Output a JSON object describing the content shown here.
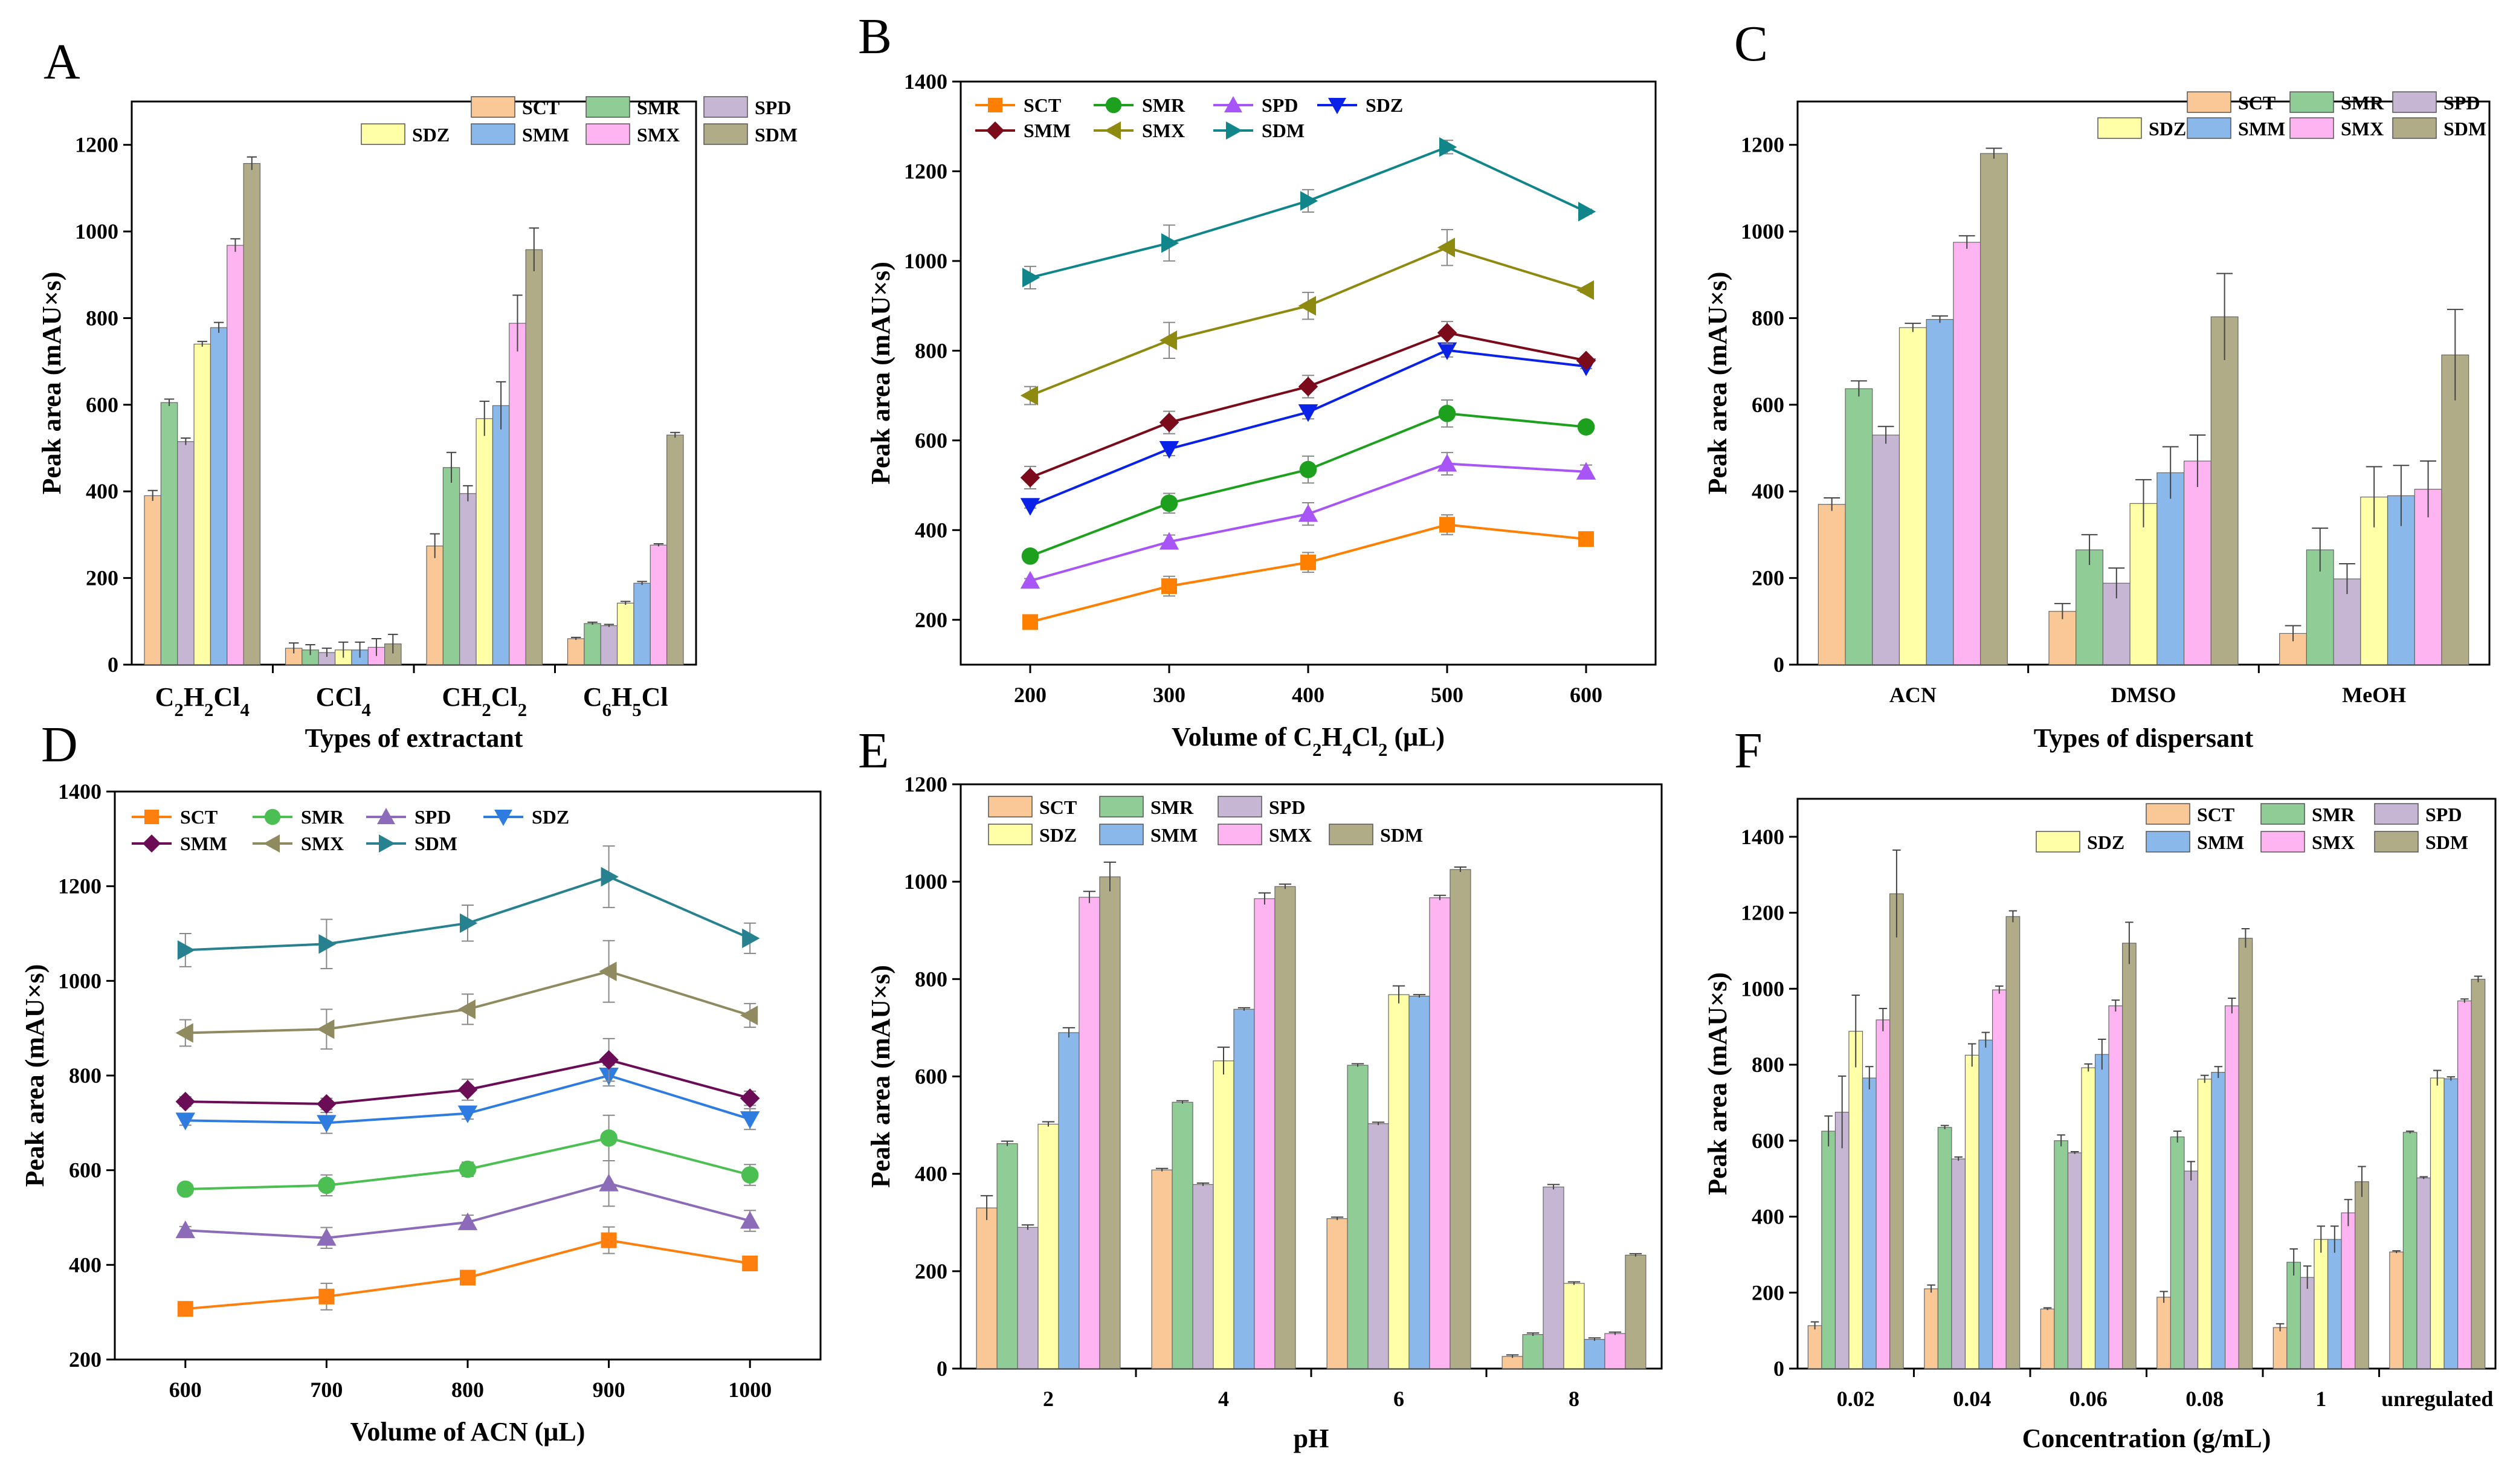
{
  "colors": {
    "SCT": "#F9C896",
    "SMR": "#90CC96",
    "SPD": "#C6B6D4",
    "SDZ": "#FFFFA8",
    "SMM": "#8AB8EA",
    "SMX": "#FFB4F2",
    "SDM": "#B0AC88"
  },
  "line_colors": {
    "B": {
      "SCT": "#FF7F00",
      "SMR": "#1DA01D",
      "SPD": "#A855F7",
      "SDZ": "#0A21E8",
      "SMM": "#7B0A1A",
      "SMX": "#8E8A10",
      "SDM": "#10858A"
    },
    "D": {
      "SCT": "#FF7F0E",
      "SMR": "#4CBF52",
      "SPD": "#8C6BB8",
      "SDZ": "#2F7CE0",
      "SMM": "#6A0D56",
      "SMX": "#8F8A60",
      "SDM": "#27818E"
    }
  },
  "chart_data": [
    {
      "panel": "A",
      "type": "bar",
      "categories": [
        "C2H2Cl4",
        "CCl4",
        "CH2Cl2",
        "C6H5Cl"
      ],
      "xlabel": "Types of extractant",
      "ylabel": "Peak area (mAU×s)",
      "ylim": [
        0,
        1300
      ],
      "yticks": [
        0,
        200,
        400,
        600,
        800,
        1000,
        1200
      ],
      "legend_order": [
        "SCT",
        "SMR",
        "SPD",
        "SDZ",
        "SMM",
        "SMX",
        "SDM"
      ],
      "series": [
        {
          "name": "SCT",
          "values": [
            390,
            38,
            274,
            60
          ],
          "errors": [
            12,
            12,
            28,
            3
          ]
        },
        {
          "name": "SMR",
          "values": [
            605,
            34,
            455,
            95
          ],
          "errors": [
            8,
            12,
            35,
            3
          ]
        },
        {
          "name": "SPD",
          "values": [
            515,
            28,
            395,
            90
          ],
          "errors": [
            8,
            10,
            18,
            3
          ]
        },
        {
          "name": "SDZ",
          "values": [
            740,
            34,
            568,
            142
          ],
          "errors": [
            6,
            18,
            40,
            4
          ]
        },
        {
          "name": "SMM",
          "values": [
            778,
            34,
            598,
            188
          ],
          "errors": [
            12,
            18,
            55,
            4
          ]
        },
        {
          "name": "SMX",
          "values": [
            968,
            40,
            788,
            276
          ],
          "errors": [
            15,
            20,
            65,
            3
          ]
        },
        {
          "name": "SDM",
          "values": [
            1157,
            48,
            958,
            530
          ],
          "errors": [
            15,
            22,
            50,
            6
          ]
        }
      ]
    },
    {
      "panel": "B",
      "type": "line",
      "x": [
        200,
        300,
        400,
        500,
        600
      ],
      "xlabel": "Volume of C2H4Cl2 (μL)",
      "ylabel": "Peak area (mAU×s)",
      "xlim": [
        150,
        650
      ],
      "ylim": [
        100,
        1400
      ],
      "yticks": [
        200,
        400,
        600,
        800,
        1000,
        1200,
        1400
      ],
      "legend_order": [
        "SCT",
        "SMR",
        "SPD",
        "SDZ",
        "SMM",
        "SMX",
        "SDM"
      ],
      "series": [
        {
          "name": "SCT",
          "marker": "square",
          "values": [
            195,
            275,
            328,
            412,
            380
          ],
          "errors": [
            5,
            22,
            22,
            22,
            5
          ]
        },
        {
          "name": "SMR",
          "marker": "circle",
          "values": [
            342,
            460,
            535,
            660,
            630
          ],
          "errors": [
            5,
            22,
            30,
            30,
            5
          ]
        },
        {
          "name": "SPD",
          "marker": "triangle-up",
          "values": [
            287,
            374,
            436,
            548,
            530
          ],
          "errors": [
            5,
            15,
            25,
            25,
            15
          ]
        },
        {
          "name": "SDZ",
          "marker": "triangle-down",
          "values": [
            454,
            581,
            663,
            801,
            765
          ],
          "errors": [
            5,
            15,
            15,
            15,
            5
          ]
        },
        {
          "name": "SMM",
          "marker": "diamond",
          "values": [
            517,
            640,
            720,
            840,
            778
          ],
          "errors": [
            25,
            25,
            25,
            25,
            5
          ]
        },
        {
          "name": "SMX",
          "marker": "triangle-left",
          "values": [
            700,
            823,
            900,
            1030,
            935
          ],
          "errors": [
            20,
            40,
            30,
            40,
            5
          ]
        },
        {
          "name": "SDM",
          "marker": "triangle-right",
          "values": [
            963,
            1040,
            1134,
            1254,
            1110
          ],
          "errors": [
            25,
            40,
            25,
            15,
            5
          ]
        }
      ]
    },
    {
      "panel": "C",
      "type": "bar",
      "categories": [
        "ACN",
        "DMSO",
        "MeOH"
      ],
      "xlabel": "Types of dispersant",
      "ylabel": "Peak area (mAU×s)",
      "ylim": [
        0,
        1300
      ],
      "yticks": [
        0,
        200,
        400,
        600,
        800,
        1000,
        1200
      ],
      "legend_order": [
        "SCT",
        "SMR",
        "SPD",
        "SDZ",
        "SMM",
        "SMX",
        "SDM"
      ],
      "series": [
        {
          "name": "SCT",
          "values": [
            370,
            123,
            72
          ],
          "errors": [
            15,
            18,
            18
          ]
        },
        {
          "name": "SMR",
          "values": [
            637,
            265,
            265
          ],
          "errors": [
            18,
            35,
            50
          ]
        },
        {
          "name": "SPD",
          "values": [
            530,
            188,
            198
          ],
          "errors": [
            20,
            35,
            35
          ]
        },
        {
          "name": "SDZ",
          "values": [
            778,
            372,
            387
          ],
          "errors": [
            10,
            55,
            70
          ]
        },
        {
          "name": "SMM",
          "values": [
            797,
            443,
            390
          ],
          "errors": [
            8,
            60,
            70
          ]
        },
        {
          "name": "SMX",
          "values": [
            975,
            470,
            405
          ],
          "errors": [
            15,
            60,
            65
          ]
        },
        {
          "name": "SDM",
          "values": [
            1180,
            803,
            715
          ],
          "errors": [
            12,
            100,
            105
          ]
        }
      ]
    },
    {
      "panel": "D",
      "type": "line",
      "x": [
        600,
        700,
        800,
        900,
        1000
      ],
      "xlabel": "Volume of  ACN (μL)",
      "ylabel": "Peak area (mAU×s)",
      "xlim": [
        550,
        1050
      ],
      "ylim": [
        200,
        1400
      ],
      "yticks": [
        200,
        400,
        600,
        800,
        1000,
        1200,
        1400
      ],
      "legend_order": [
        "SCT",
        "SMR",
        "SPD",
        "SDZ",
        "SMM",
        "SMX",
        "SDM"
      ],
      "series": [
        {
          "name": "SCT",
          "marker": "square",
          "values": [
            307,
            333,
            373,
            452,
            403
          ],
          "errors": [
            10,
            28,
            12,
            28,
            12
          ]
        },
        {
          "name": "SMR",
          "marker": "circle",
          "values": [
            560,
            568,
            602,
            668,
            590
          ],
          "errors": [
            8,
            22,
            15,
            48,
            22
          ]
        },
        {
          "name": "SPD",
          "marker": "triangle-up",
          "values": [
            473,
            457,
            490,
            572,
            493
          ],
          "errors": [
            8,
            22,
            15,
            48,
            22
          ]
        },
        {
          "name": "SDZ",
          "marker": "triangle-down",
          "values": [
            705,
            700,
            720,
            800,
            708
          ],
          "errors": [
            10,
            22,
            12,
            22,
            22
          ]
        },
        {
          "name": "SMM",
          "marker": "diamond",
          "values": [
            745,
            740,
            770,
            833,
            752
          ],
          "errors": [
            10,
            12,
            22,
            45,
            15
          ]
        },
        {
          "name": "SMX",
          "marker": "triangle-left",
          "values": [
            890,
            898,
            940,
            1020,
            927
          ],
          "errors": [
            28,
            42,
            32,
            65,
            25
          ]
        },
        {
          "name": "SDM",
          "marker": "triangle-right",
          "values": [
            1065,
            1078,
            1122,
            1220,
            1090
          ],
          "errors": [
            35,
            52,
            38,
            65,
            32
          ]
        }
      ]
    },
    {
      "panel": "E",
      "type": "bar",
      "categories": [
        "2",
        "4",
        "6",
        "8"
      ],
      "xlabel": "pH",
      "ylabel": "Peak area (mAU×s)",
      "ylim": [
        0,
        1200
      ],
      "yticks": [
        0,
        200,
        400,
        600,
        800,
        1000,
        1200
      ],
      "legend_order": [
        "SCT",
        "SMR",
        "SPD",
        "SDZ",
        "SMM",
        "SMX",
        "SDM"
      ],
      "series": [
        {
          "name": "SCT",
          "values": [
            330,
            408,
            308,
            25
          ],
          "errors": [
            25,
            3,
            3,
            3
          ]
        },
        {
          "name": "SMR",
          "values": [
            462,
            547,
            623,
            70
          ],
          "errors": [
            5,
            3,
            3,
            3
          ]
        },
        {
          "name": "SPD",
          "values": [
            290,
            378,
            503,
            373
          ],
          "errors": [
            5,
            3,
            3,
            5
          ]
        },
        {
          "name": "SDZ",
          "values": [
            502,
            632,
            768,
            175
          ],
          "errors": [
            5,
            28,
            18,
            3
          ]
        },
        {
          "name": "SMM",
          "values": [
            690,
            738,
            765,
            60
          ],
          "errors": [
            10,
            3,
            3,
            3
          ]
        },
        {
          "name": "SMX",
          "values": [
            968,
            965,
            967,
            72
          ],
          "errors": [
            12,
            12,
            5,
            3
          ]
        },
        {
          "name": "SDM",
          "values": [
            1010,
            990,
            1025,
            233
          ],
          "errors": [
            30,
            5,
            5,
            3
          ]
        }
      ]
    },
    {
      "panel": "F",
      "type": "bar",
      "categories": [
        "0.02",
        "0.04",
        "0.06",
        "0.08",
        "1",
        "unregulated"
      ],
      "xlabel": "Concentration (g/mL)",
      "ylabel": "Peak area (mAU×s)",
      "ylim": [
        0,
        1500
      ],
      "yticks": [
        0,
        200,
        400,
        600,
        800,
        1000,
        1200,
        1400
      ],
      "legend_order": [
        "SCT",
        "SMR",
        "SPD",
        "SDZ",
        "SMM",
        "SMX",
        "SDM"
      ],
      "series": [
        {
          "name": "SCT",
          "values": [
            113,
            210,
            157,
            188,
            108,
            307
          ],
          "errors": [
            10,
            10,
            3,
            15,
            10,
            3
          ]
        },
        {
          "name": "SMR",
          "values": [
            625,
            635,
            600,
            610,
            280,
            622
          ],
          "errors": [
            40,
            5,
            15,
            15,
            35,
            3
          ]
        },
        {
          "name": "SPD",
          "values": [
            675,
            552,
            568,
            520,
            240,
            502
          ],
          "errors": [
            95,
            5,
            3,
            25,
            30,
            3
          ]
        },
        {
          "name": "SDZ",
          "values": [
            888,
            825,
            792,
            762,
            340,
            765
          ],
          "errors": [
            95,
            30,
            10,
            10,
            35,
            20
          ]
        },
        {
          "name": "SMM",
          "values": [
            765,
            865,
            827,
            780,
            340,
            763
          ],
          "errors": [
            30,
            20,
            40,
            15,
            35,
            5
          ]
        },
        {
          "name": "SMX",
          "values": [
            918,
            997,
            955,
            955,
            410,
            968
          ],
          "errors": [
            30,
            10,
            15,
            20,
            35,
            5
          ]
        },
        {
          "name": "SDM",
          "values": [
            1250,
            1190,
            1120,
            1133,
            492,
            1025
          ],
          "errors": [
            115,
            15,
            55,
            25,
            40,
            8
          ]
        }
      ]
    }
  ]
}
